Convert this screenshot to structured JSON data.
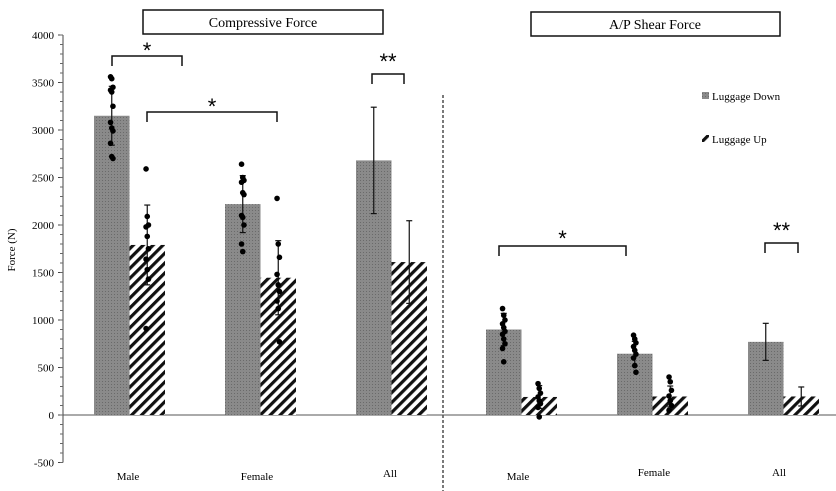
{
  "chart_data": [
    {
      "type": "bar",
      "title": "Compressive Force",
      "ylabel": "Force (N)",
      "ylim": [
        -500,
        4000
      ],
      "yticks": [
        "-500",
        "0",
        "500",
        "1000",
        "1500",
        "2000",
        "2500",
        "3000",
        "3500",
        "4000"
      ],
      "categories": [
        "Male",
        "Female",
        "All"
      ],
      "series": [
        {
          "name": "Luggage Down",
          "values": [
            3150,
            2220,
            2680
          ],
          "errors": [
            310,
            300,
            560
          ],
          "points": [
            [
              3560,
              3540,
              3450,
              3420,
              3400,
              3250,
              3080,
              3020,
              2990,
              2860,
              2720,
              2700
            ],
            [
              2640,
              2500,
              2470,
              2450,
              2340,
              2320,
              2100,
              2080,
              2000,
              1800,
              1720
            ],
            []
          ]
        },
        {
          "name": "Luggage Up",
          "values": [
            1790,
            1445,
            1610
          ],
          "errors": [
            420,
            390,
            435
          ],
          "points": [
            [
              2590,
              2090,
              2000,
              1980,
              1880,
              1750,
              1640,
              1530,
              1430,
              910
            ],
            [
              2280,
              1800,
              1660,
              1480,
              1370,
              1300,
              1200,
              1120,
              770
            ],
            []
          ]
        }
      ],
      "significance": [
        {
          "label": "*",
          "from": "Male Luggage Down",
          "to": "Female Luggage Down"
        },
        {
          "label": "*",
          "from": "Male Luggage Up",
          "to": "Female Luggage Up"
        },
        {
          "label": "**",
          "from": "All Luggage Down",
          "to": "All Luggage Up"
        }
      ]
    },
    {
      "type": "bar",
      "title": "A/P Shear Force",
      "categories": [
        "Male",
        "Female",
        "All"
      ],
      "series": [
        {
          "name": "Luggage Down",
          "values": [
            900,
            645,
            770
          ],
          "errors": [
            170,
            130,
            195
          ],
          "points": [
            [
              1120,
              1050,
              1000,
              960,
              920,
              880,
              850,
              800,
              750,
              700,
              560
            ],
            [
              840,
              800,
              760,
              720,
              680,
              640,
              600,
              520,
              450
            ],
            []
          ]
        },
        {
          "name": "Luggage Up",
          "values": [
            190,
            195,
            195
          ],
          "errors": [
            120,
            110,
            100
          ],
          "points": [
            [
              330,
              280,
              230,
              190,
              150,
              120,
              80,
              -20
            ],
            [
              400,
              350,
              260,
              200,
              150,
              100,
              50
            ],
            []
          ]
        }
      ],
      "significance": [
        {
          "label": "*",
          "from": "Male Luggage Down",
          "to": "Female Luggage Down"
        },
        {
          "label": "**",
          "from": "All Luggage Down",
          "to": "All Luggage Up"
        }
      ]
    }
  ],
  "legend": {
    "items": [
      "Luggage Down",
      "Luggage Up"
    ],
    "placement": "top-right"
  }
}
